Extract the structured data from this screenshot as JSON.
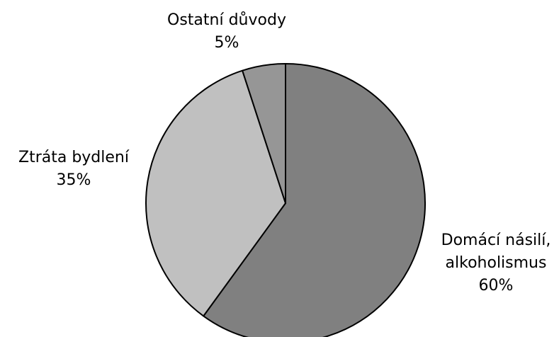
{
  "chart_data": {
    "type": "pie",
    "title": "",
    "start_angle_deg": 0,
    "direction": "clockwise",
    "slices": [
      {
        "label_lines": [
          "Domácí násilí,",
          "alkoholismus"
        ],
        "value": 60,
        "value_label": "60%",
        "color": "#808080"
      },
      {
        "label_lines": [
          "Ztráta bydlení"
        ],
        "value": 35,
        "value_label": "35%",
        "color": "#c0c0c0"
      },
      {
        "label_lines": [
          "Ostatní důvody"
        ],
        "value": 5,
        "value_label": "5%",
        "color": "#969696"
      }
    ]
  }
}
